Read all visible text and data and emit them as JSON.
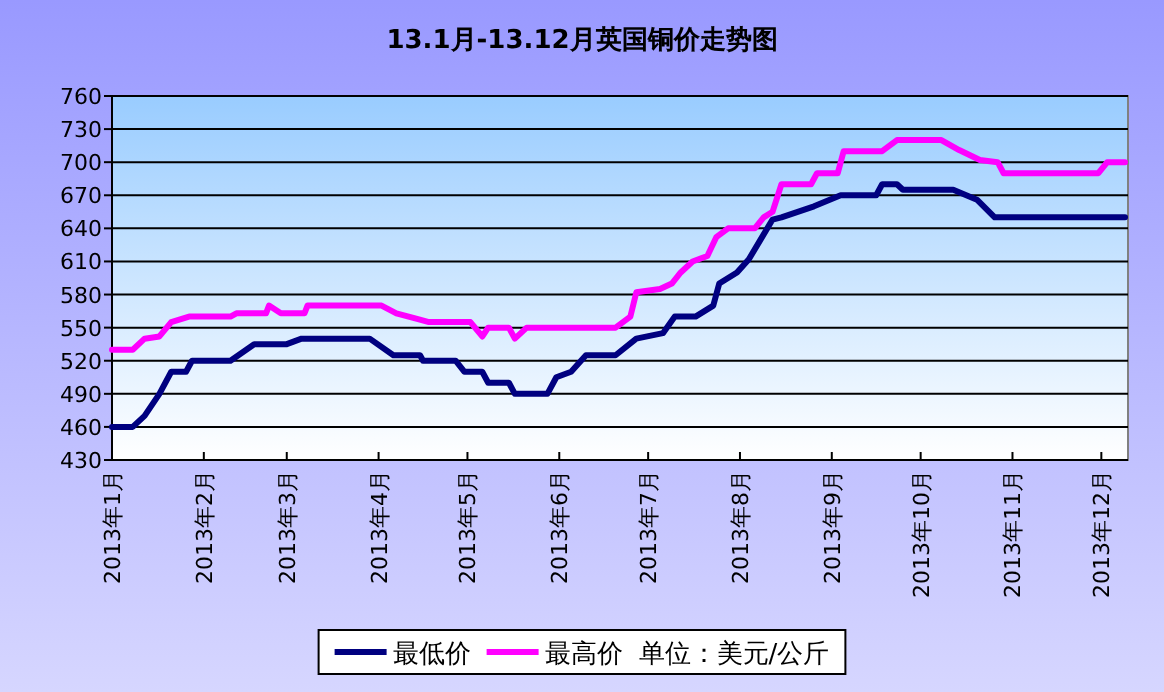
{
  "chart_data": {
    "type": "line",
    "title": "13.1月-13.12月英国铜价走势图",
    "xlim": [
      "2013-01-01",
      "2013-12-10"
    ],
    "xticks": [
      {
        "value": "2013-01",
        "label": "2013年1月"
      },
      {
        "value": "2013-02",
        "label": "2013年2月"
      },
      {
        "value": "2013-03",
        "label": "2013年3月"
      },
      {
        "value": "2013-04",
        "label": "2013年4月"
      },
      {
        "value": "2013-05",
        "label": "2013年5月"
      },
      {
        "value": "2013-06",
        "label": "2013年6月"
      },
      {
        "value": "2013-07",
        "label": "2013年7月"
      },
      {
        "value": "2013-08",
        "label": "2013年8月"
      },
      {
        "value": "2013-09",
        "label": "2013年9月"
      },
      {
        "value": "2013-10",
        "label": "2013年10月"
      },
      {
        "value": "2013-11",
        "label": "2013年11月"
      },
      {
        "value": "2013-12",
        "label": "2013年12月"
      }
    ],
    "ylim": [
      430,
      760
    ],
    "yticks": [
      430,
      460,
      490,
      520,
      550,
      580,
      610,
      640,
      670,
      700,
      730,
      760
    ],
    "grid": "y",
    "legend": "bottom",
    "marker": "none",
    "line_style": "solid",
    "annotations": [
      "单位：美元/公斤"
    ],
    "series": [
      {
        "name": "最低价",
        "color": "#000080",
        "x": [
          "2013-01-01",
          "2013-01-08",
          "2013-01-12",
          "2013-01-17",
          "2013-01-21",
          "2013-01-26",
          "2013-01-28",
          "2013-02-10",
          "2013-02-18",
          "2013-03-01",
          "2013-03-06",
          "2013-03-29",
          "2013-04-06",
          "2013-04-15",
          "2013-04-16",
          "2013-04-27",
          "2013-04-30",
          "2013-05-06",
          "2013-05-08",
          "2013-05-15",
          "2013-05-17",
          "2013-05-28",
          "2013-05-31",
          "2013-06-05",
          "2013-06-10",
          "2013-06-20",
          "2013-06-27",
          "2013-07-06",
          "2013-07-10",
          "2013-07-17",
          "2013-07-23",
          "2013-07-25",
          "2013-07-31",
          "2013-08-04",
          "2013-08-08",
          "2013-08-12",
          "2013-08-15",
          "2013-08-26",
          "2013-09-04",
          "2013-09-16",
          "2013-09-18",
          "2013-09-23",
          "2013-09-25",
          "2013-10-12",
          "2013-10-20",
          "2013-10-26",
          "2013-12-09"
        ],
        "values": [
          460,
          460,
          470,
          490,
          510,
          510,
          520,
          520,
          535,
          535,
          540,
          540,
          525,
          525,
          520,
          520,
          510,
          510,
          500,
          500,
          490,
          490,
          505,
          510,
          525,
          525,
          540,
          545,
          560,
          560,
          570,
          590,
          600,
          612,
          630,
          648,
          650,
          660,
          670,
          670,
          680,
          680,
          675,
          675,
          666,
          650,
          650
        ]
      },
      {
        "name": "最高价",
        "color": "#ff00ff",
        "x": [
          "2013-01-01",
          "2013-01-08",
          "2013-01-12",
          "2013-01-17",
          "2013-01-21",
          "2013-01-27",
          "2013-02-10",
          "2013-02-12",
          "2013-02-22",
          "2013-02-23",
          "2013-02-27",
          "2013-03-07",
          "2013-03-08",
          "2013-04-02",
          "2013-04-07",
          "2013-04-14",
          "2013-04-18",
          "2013-05-02",
          "2013-05-06",
          "2013-05-08",
          "2013-05-15",
          "2013-05-17",
          "2013-05-21",
          "2013-06-14",
          "2013-06-20",
          "2013-06-25",
          "2013-06-27",
          "2013-07-05",
          "2013-07-09",
          "2013-07-12",
          "2013-07-16",
          "2013-07-21",
          "2013-07-24",
          "2013-07-28",
          "2013-08-06",
          "2013-08-09",
          "2013-08-12",
          "2013-08-15",
          "2013-08-25",
          "2013-08-27",
          "2013-09-03",
          "2013-09-05",
          "2013-09-18",
          "2013-09-23",
          "2013-10-08",
          "2013-10-14",
          "2013-10-21",
          "2013-10-27",
          "2013-10-29",
          "2013-11-30",
          "2013-12-03",
          "2013-12-09"
        ],
        "values": [
          530,
          530,
          540,
          542,
          555,
          560,
          560,
          563,
          563,
          570,
          563,
          563,
          570,
          570,
          563,
          558,
          555,
          555,
          542,
          550,
          550,
          540,
          550,
          550,
          550,
          560,
          582,
          585,
          590,
          600,
          610,
          615,
          632,
          640,
          640,
          650,
          655,
          680,
          680,
          690,
          690,
          710,
          710,
          720,
          720,
          711,
          702,
          700,
          690,
          690,
          700,
          700
        ]
      }
    ]
  }
}
